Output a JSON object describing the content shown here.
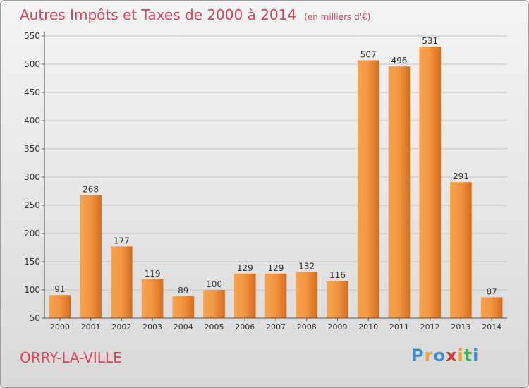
{
  "title": "Autres Impôts et Taxes de 2000 à 2014",
  "subtitle": "(en milliers d'€)",
  "location": "ORRY-LA-VILLE",
  "logo": {
    "letters": [
      "P",
      "r",
      "o",
      "x",
      "i",
      "t",
      "i"
    ],
    "colors": [
      "#3a8fd0",
      "#f0a030",
      "#3a8fd0",
      "#d03a3a",
      "#f0a030",
      "#3ab04a",
      "#3a8fd0"
    ]
  },
  "colors": {
    "title": "#e0405a",
    "bar_light": "#f7a34e",
    "bar_dark": "#d56c1c"
  },
  "chart_data": {
    "type": "bar",
    "categories": [
      "2000",
      "2001",
      "2002",
      "2003",
      "2004",
      "2005",
      "2006",
      "2007",
      "2008",
      "2009",
      "2010",
      "2011",
      "2012",
      "2013",
      "2014"
    ],
    "values": [
      91,
      268,
      177,
      119,
      89,
      100,
      129,
      129,
      132,
      116,
      507,
      496,
      531,
      291,
      87
    ],
    "ylim": [
      50,
      550
    ],
    "yticks": [
      50,
      100,
      150,
      200,
      250,
      300,
      350,
      400,
      450,
      500,
      550
    ],
    "grid": true,
    "data_labels": true
  }
}
